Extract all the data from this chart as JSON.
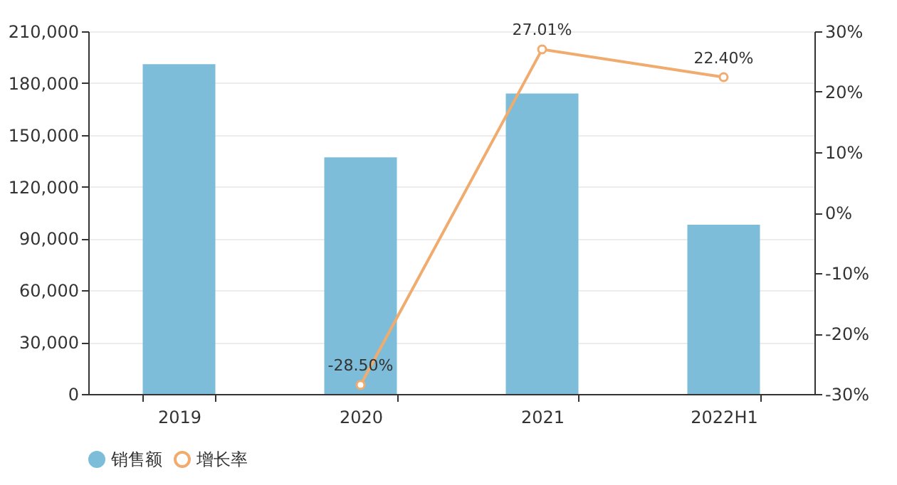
{
  "chart_data": {
    "type": "bar",
    "categories": [
      "2019",
      "2020",
      "2021",
      "2022H1"
    ],
    "series": [
      {
        "name": "销售额",
        "color": "#7dbdd9",
        "values": [
          191000,
          137000,
          174000,
          98000
        ]
      },
      {
        "name": "增长率",
        "type": "line",
        "axis": "y2",
        "color": "#f0ac6e",
        "marker": "circle",
        "values": [
          null,
          -28.5,
          27.01,
          22.4
        ],
        "value_labels": [
          null,
          "-28.50%",
          "27.01%",
          "22.40%"
        ]
      }
    ],
    "ylim": [
      0,
      210000
    ],
    "yticks": [
      0,
      {
        "value": 30000,
        "label": "30,000"
      },
      {
        "value": 60000,
        "label": "60,000"
      },
      {
        "value": 90000,
        "label": "90,000"
      },
      {
        "value": 120000,
        "label": "120,000"
      },
      {
        "value": 150000,
        "label": "150,000"
      },
      {
        "value": 180000,
        "label": "180,000"
      },
      {
        "value": 210000,
        "label": "210,000"
      }
    ],
    "y2lim": [
      -30,
      30
    ],
    "y2ticks": [
      {
        "value": -30,
        "label": "-30%"
      },
      {
        "value": -20,
        "label": "-20%"
      },
      {
        "value": -10,
        "label": "-10%"
      },
      {
        "value": 0,
        "label": "0%"
      },
      {
        "value": 10,
        "label": "10%"
      },
      {
        "value": 20,
        "label": "20%"
      },
      {
        "value": 30,
        "label": "30%"
      }
    ],
    "grid": "y",
    "legend": "bottom"
  }
}
